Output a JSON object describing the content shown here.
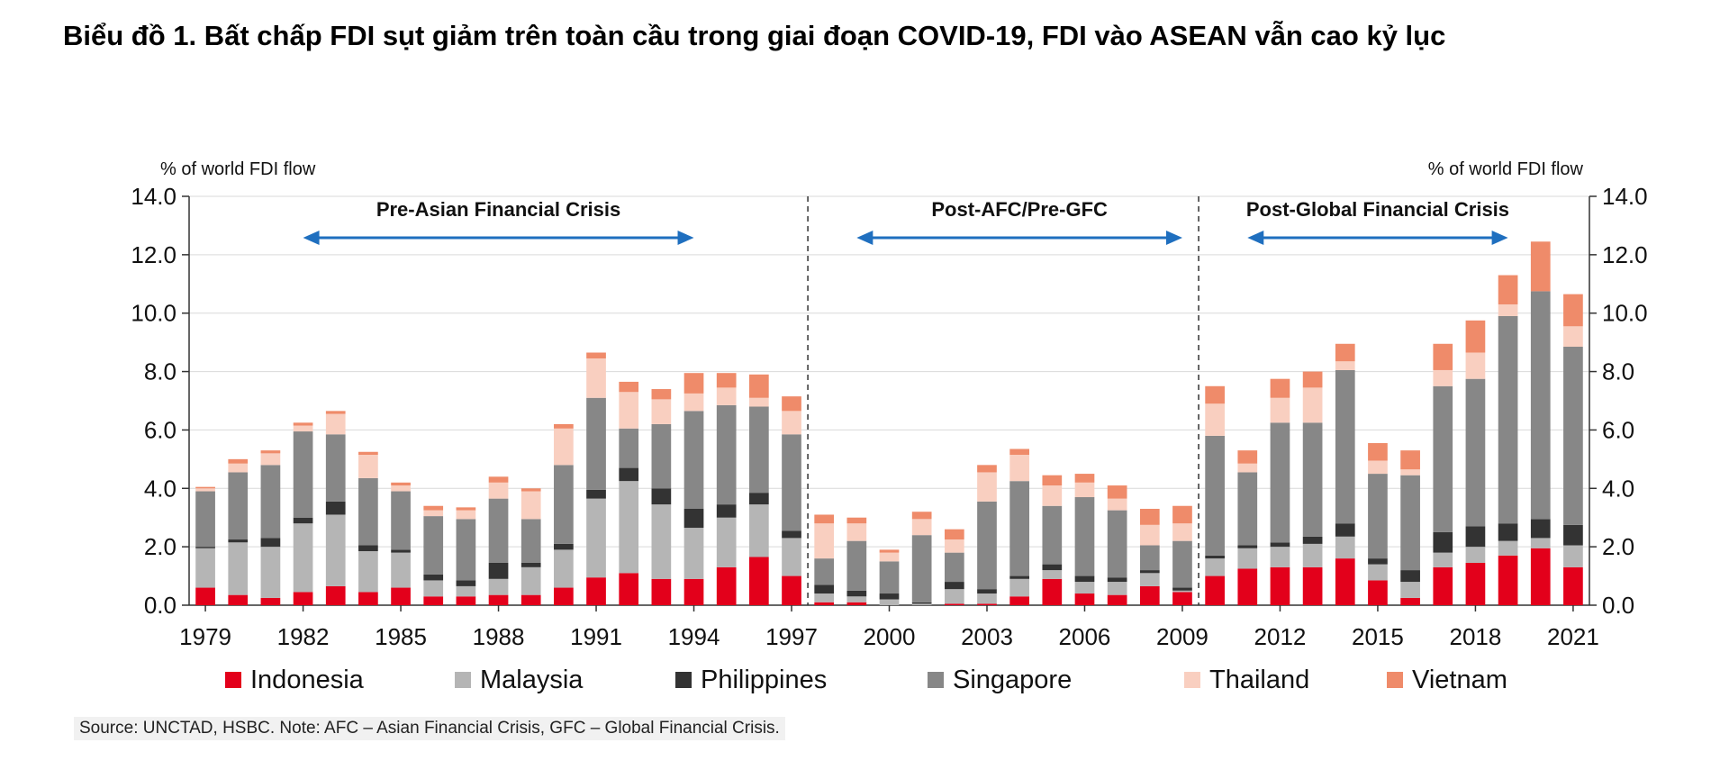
{
  "title": "Biểu đồ 1. Bất chấp FDI sụt giảm trên toàn cầu trong giai đoạn COVID-19, FDI vào ASEAN vẫn cao kỷ lục",
  "source": "Source: UNCTAD, HSBC. Note: AFC – Asian Financial Crisis, GFC – Global Financial Crisis.",
  "chart_data": {
    "type": "bar",
    "stacked": true,
    "ylabel_left": "% of world FDI flow",
    "ylabel_right": "% of world FDI flow",
    "ylim": [
      0,
      14
    ],
    "yticks": [
      "0.0",
      "2.0",
      "4.0",
      "6.0",
      "8.0",
      "10.0",
      "12.0",
      "14.0"
    ],
    "xtick_labels": [
      "1979",
      "1982",
      "1985",
      "1988",
      "1991",
      "1994",
      "1997",
      "2000",
      "2003",
      "2006",
      "2009",
      "2012",
      "2015",
      "2018",
      "2021"
    ],
    "categories": [
      1979,
      1980,
      1981,
      1982,
      1983,
      1984,
      1985,
      1986,
      1987,
      1988,
      1989,
      1990,
      1991,
      1992,
      1993,
      1994,
      1995,
      1996,
      1997,
      1998,
      1999,
      2000,
      2001,
      2002,
      2003,
      2004,
      2005,
      2006,
      2007,
      2008,
      2009,
      2010,
      2011,
      2012,
      2013,
      2014,
      2015,
      2016,
      2017,
      2018,
      2019,
      2020,
      2021
    ],
    "series": [
      {
        "name": "Indonesia",
        "color": "#e3001b",
        "values": [
          0.6,
          0.35,
          0.25,
          0.45,
          0.65,
          0.45,
          0.6,
          0.3,
          0.3,
          0.35,
          0.35,
          0.6,
          0.95,
          1.1,
          0.9,
          0.9,
          1.3,
          1.65,
          1.0,
          0.1,
          0.1,
          0.0,
          0.0,
          0.05,
          0.05,
          0.3,
          0.9,
          0.4,
          0.35,
          0.65,
          0.45,
          1.0,
          1.25,
          1.3,
          1.3,
          1.6,
          0.85,
          0.25,
          1.3,
          1.45,
          1.7,
          1.95,
          1.3
        ]
      },
      {
        "name": "Malaysia",
        "color": "#b5b5b5",
        "values": [
          1.35,
          1.8,
          1.75,
          2.35,
          2.45,
          1.4,
          1.2,
          0.55,
          0.35,
          0.55,
          0.95,
          1.3,
          2.7,
          3.15,
          2.55,
          1.75,
          1.7,
          1.8,
          1.3,
          0.3,
          0.2,
          0.2,
          0.05,
          0.5,
          0.35,
          0.6,
          0.3,
          0.4,
          0.45,
          0.45,
          0.05,
          0.6,
          0.7,
          0.7,
          0.8,
          0.75,
          0.55,
          0.55,
          0.5,
          0.55,
          0.5,
          0.35,
          0.75
        ]
      },
      {
        "name": "Philippines",
        "color": "#333333",
        "values": [
          0.05,
          0.1,
          0.3,
          0.2,
          0.45,
          0.2,
          0.1,
          0.2,
          0.2,
          0.55,
          0.15,
          0.2,
          0.3,
          0.45,
          0.55,
          0.65,
          0.45,
          0.4,
          0.25,
          0.3,
          0.2,
          0.2,
          0.05,
          0.25,
          0.15,
          0.1,
          0.2,
          0.2,
          0.15,
          0.1,
          0.1,
          0.1,
          0.1,
          0.15,
          0.25,
          0.45,
          0.2,
          0.4,
          0.7,
          0.7,
          0.6,
          0.65,
          0.7
        ]
      },
      {
        "name": "Singapore",
        "color": "#878787",
        "values": [
          1.9,
          2.3,
          2.5,
          2.95,
          2.3,
          2.3,
          2.0,
          2.0,
          2.1,
          2.2,
          1.5,
          2.7,
          3.15,
          1.35,
          2.2,
          3.35,
          3.4,
          2.95,
          3.3,
          0.9,
          1.7,
          1.1,
          2.3,
          1.0,
          3.0,
          3.25,
          2.0,
          2.7,
          2.3,
          0.85,
          1.6,
          4.1,
          2.5,
          4.1,
          3.9,
          5.25,
          2.9,
          3.25,
          5.0,
          5.05,
          7.1,
          7.8,
          6.1
        ]
      },
      {
        "name": "Thailand",
        "color": "#f9cfc0",
        "values": [
          0.1,
          0.3,
          0.4,
          0.2,
          0.7,
          0.8,
          0.2,
          0.2,
          0.3,
          0.55,
          0.95,
          1.25,
          1.35,
          1.25,
          0.85,
          0.6,
          0.6,
          0.3,
          0.8,
          1.2,
          0.6,
          0.3,
          0.55,
          0.45,
          1.0,
          0.9,
          0.7,
          0.5,
          0.4,
          0.7,
          0.6,
          1.1,
          0.3,
          0.85,
          1.2,
          0.3,
          0.45,
          0.2,
          0.55,
          0.9,
          0.4,
          0.0,
          0.7
        ]
      },
      {
        "name": "Vietnam",
        "color": "#ef8b6a",
        "values": [
          0.05,
          0.15,
          0.1,
          0.1,
          0.1,
          0.1,
          0.1,
          0.15,
          0.1,
          0.2,
          0.1,
          0.15,
          0.2,
          0.35,
          0.35,
          0.7,
          0.5,
          0.8,
          0.5,
          0.3,
          0.2,
          0.1,
          0.25,
          0.35,
          0.25,
          0.2,
          0.35,
          0.3,
          0.45,
          0.55,
          0.6,
          0.6,
          0.45,
          0.65,
          0.55,
          0.6,
          0.6,
          0.65,
          0.9,
          1.1,
          1.0,
          1.7,
          1.1
        ]
      }
    ],
    "annotations": [
      {
        "text": "Pre-Asian Financial Crisis",
        "x_from": 1982,
        "x_to": 1994
      },
      {
        "text": "Post-AFC/Pre-GFC",
        "x_from": 1999,
        "x_to": 2009
      },
      {
        "text": "Post-Global Financial Crisis",
        "x_from": 2011,
        "x_to": 2019
      }
    ],
    "dividers": [
      1997.5,
      2009.5
    ],
    "legend_position": "bottom",
    "arrow_color": "#1f6fbf"
  }
}
